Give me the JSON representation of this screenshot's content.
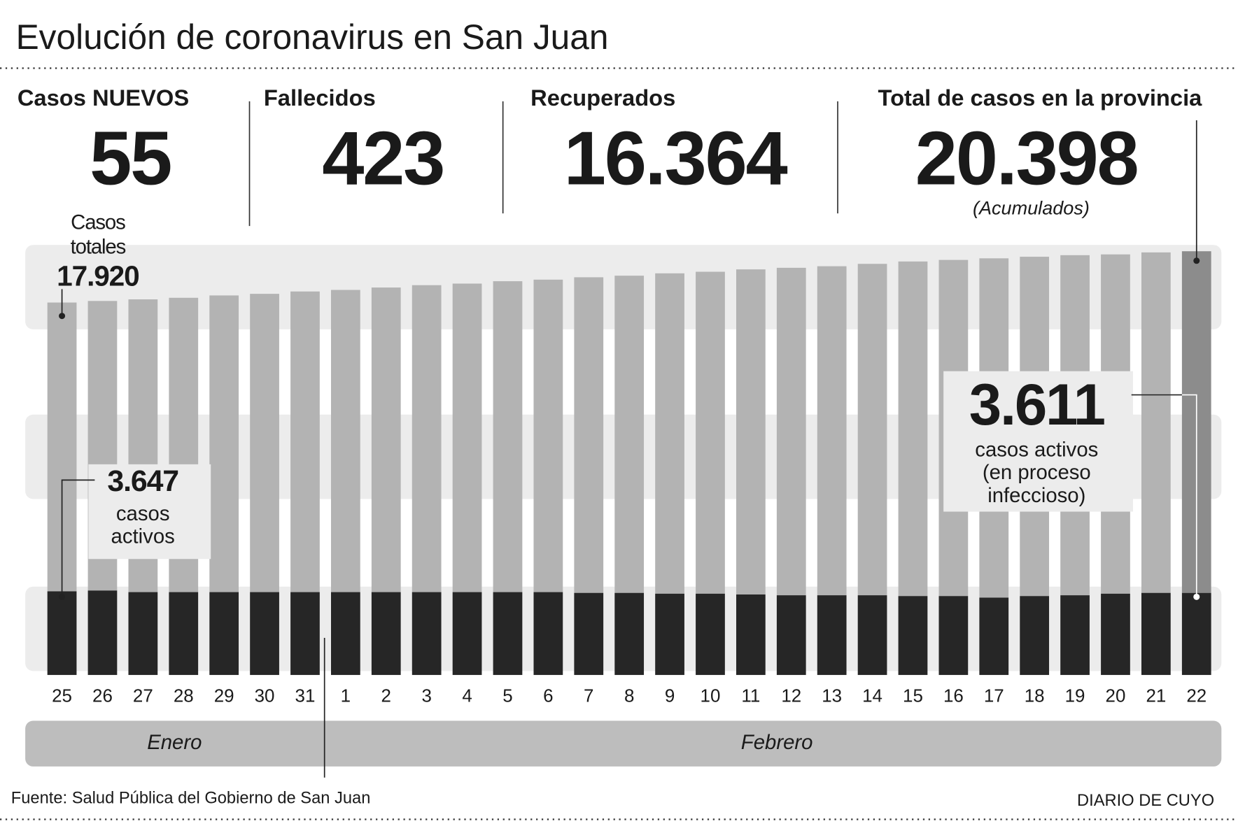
{
  "chart_data": {
    "type": "bar",
    "title": "Evolución de coronavirus en San Juan",
    "stats": [
      {
        "label": "Casos NUEVOS",
        "value": "55",
        "color": "#444444"
      },
      {
        "label": "Fallecidos",
        "value": "423",
        "color": "#111111"
      },
      {
        "label": "Recuperados",
        "value": "16.364",
        "color": "#555555"
      },
      {
        "label": "Total de casos en la provincia",
        "value": "20.398",
        "color": "#444444"
      }
    ],
    "stats_note": "(Acumulados)",
    "categories": [
      "25",
      "26",
      "27",
      "28",
      "29",
      "30",
      "31",
      "1",
      "2",
      "3",
      "4",
      "5",
      "6",
      "7",
      "8",
      "9",
      "10",
      "11",
      "12",
      "13",
      "14",
      "15",
      "16",
      "17",
      "18",
      "19",
      "20",
      "21",
      "22"
    ],
    "months": [
      "Enero",
      "Febrero"
    ],
    "series": [
      {
        "color": "#b3b3b3",
        "highlight_color": "#8c8c8c",
        "values": [
          17920,
          17996,
          18073,
          18149,
          18263,
          18340,
          18454,
          18530,
          18645,
          18759,
          18835,
          18950,
          19026,
          19140,
          19217,
          19331,
          19407,
          19522,
          19598,
          19674,
          19789,
          19903,
          19979,
          20056,
          20132,
          20208,
          20246,
          20343,
          20398
        ]
      },
      {
        "color": "#262626",
        "values": [
          3647,
          3665,
          3629,
          3629,
          3629,
          3629,
          3629,
          3629,
          3629,
          3629,
          3629,
          3629,
          3629,
          3611,
          3611,
          3593,
          3593,
          3575,
          3557,
          3557,
          3557,
          3539,
          3539,
          3503,
          3539,
          3557,
          3593,
          3611,
          3611
        ]
      }
    ],
    "annotations": {
      "start_total": {
        "lines": [
          "Casos",
          "totales"
        ],
        "value": "17.920"
      },
      "start_active": {
        "value": "3.647",
        "lines": [
          "casos",
          "activos"
        ]
      },
      "end_active": {
        "value": "3.611",
        "lines": [
          "casos activos",
          "(en proceso",
          "infeccioso)"
        ]
      }
    },
    "source": "Fuente: Salud Pública del Gobierno de San Juan",
    "credit": "DIARIO DE CUYO"
  }
}
